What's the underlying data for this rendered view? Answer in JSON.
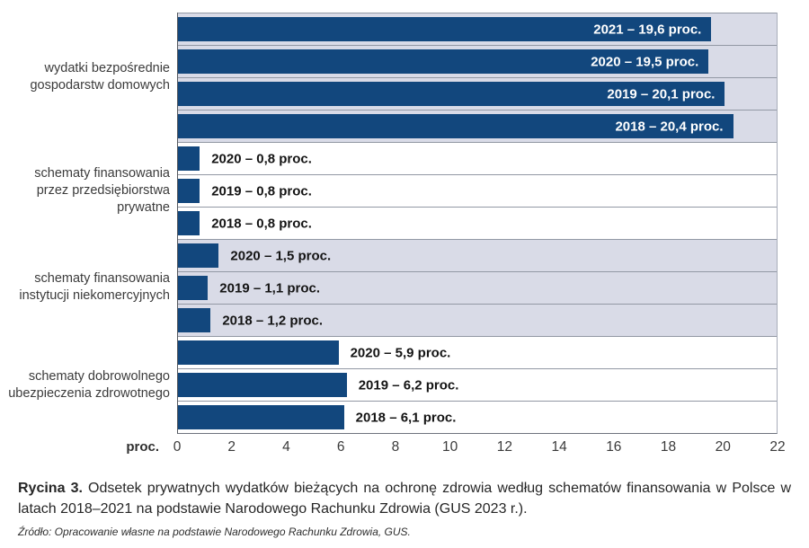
{
  "figure": {
    "caption_label": "Rycina 3.",
    "caption_text": "Odsetek prywatnych wydatków bieżących na ochronę zdrowia według schematów finansowania w Polsce w latach 2018–2021 na podstawie Narodowego Rachunku Zdrowia (GUS 2023 r.).",
    "source": "Źródło: Opracowanie własne na podstawie Narodowego Rachunku Zdrowia, GUS."
  },
  "chart_data": {
    "type": "bar",
    "orientation": "horizontal",
    "unit_label": "proc.",
    "xlabel": "proc.",
    "xlim": [
      0,
      22
    ],
    "xticks": [
      0,
      2,
      4,
      6,
      8,
      10,
      12,
      14,
      16,
      18,
      20,
      22
    ],
    "grid": false,
    "legend": false,
    "bar_color": "#12477d",
    "row_shaded_color": "#d9dbe7",
    "row_plain_color": "#ffffff",
    "groups": [
      {
        "category": "wydatki bezpośrednie gospodarstw domowych",
        "category_lines": [
          "wydatki bezpośrednie",
          "gospodarstw domowych"
        ],
        "shaded": true,
        "labels_inside_bar": true,
        "bars": [
          {
            "year": "2021",
            "value": 19.6,
            "label": "2021 – 19,6 proc."
          },
          {
            "year": "2020",
            "value": 19.5,
            "label": "2020 – 19,5 proc."
          },
          {
            "year": "2019",
            "value": 20.1,
            "label": "2019 – 20,1 proc."
          },
          {
            "year": "2018",
            "value": 20.4,
            "label": "2018 – 20,4 proc."
          }
        ]
      },
      {
        "category": "schematy finansowania przez przedsiębiorstwa prywatne",
        "category_lines": [
          "schematy finansowania",
          "przez przedsiębiorstwa",
          "prywatne"
        ],
        "shaded": false,
        "labels_inside_bar": false,
        "bars": [
          {
            "year": "2020",
            "value": 0.8,
            "label": "2020 – 0,8 proc."
          },
          {
            "year": "2019",
            "value": 0.8,
            "label": "2019 – 0,8 proc."
          },
          {
            "year": "2018",
            "value": 0.8,
            "label": "2018 – 0,8 proc."
          }
        ]
      },
      {
        "category": "schematy finansowania instytucji niekomercyjnych",
        "category_lines": [
          "schematy finansowania",
          "instytucji niekomercyjnych"
        ],
        "shaded": true,
        "labels_inside_bar": false,
        "bars": [
          {
            "year": "2020",
            "value": 1.5,
            "label": "2020 – 1,5 proc."
          },
          {
            "year": "2019",
            "value": 1.1,
            "label": "2019 – 1,1 proc."
          },
          {
            "year": "2018",
            "value": 1.2,
            "label": "2018 – 1,2 proc."
          }
        ]
      },
      {
        "category": "schematy dobrowolnego ubezpieczenia zdrowotnego",
        "category_lines": [
          "schematy dobrowolnego",
          "ubezpieczenia zdrowotnego"
        ],
        "shaded": false,
        "labels_inside_bar": false,
        "bars": [
          {
            "year": "2020",
            "value": 5.9,
            "label": "2020 – 5,9 proc."
          },
          {
            "year": "2019",
            "value": 6.2,
            "label": "2019 – 6,2 proc."
          },
          {
            "year": "2018",
            "value": 6.1,
            "label": "2018 – 6,1 proc."
          }
        ]
      }
    ]
  }
}
